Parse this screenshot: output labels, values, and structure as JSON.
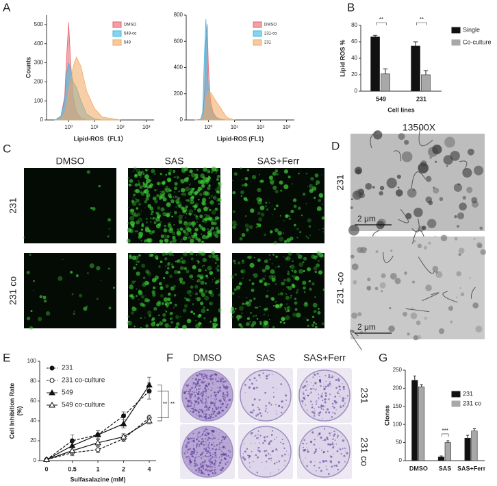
{
  "panel_labels": [
    "A",
    "B",
    "C",
    "D",
    "E",
    "F",
    "G"
  ],
  "chart_data": [
    {
      "type": "area",
      "xscale": "log",
      "ylabel": "Counts",
      "xlabel": "Lipid-ROS（FL1）",
      "legend": "upper right",
      "xlim": [
        0.14,
        2000
      ],
      "xticks": [
        {
          "value": 1,
          "label": "10⁰"
        },
        {
          "value": 10,
          "label": "10¹"
        },
        {
          "value": 100,
          "label": "10²"
        },
        {
          "value": 1000,
          "label": "10³"
        }
      ],
      "ylim": [
        0,
        550
      ],
      "yticks": [
        0,
        100,
        200,
        300,
        400,
        500
      ],
      "x": [
        0.3,
        0.5,
        0.7,
        0.85,
        1,
        1.2,
        1.5,
        2,
        3,
        5,
        10,
        20,
        100
      ],
      "series": [
        {
          "name": "DMSO",
          "color": "#e8606a",
          "values": [
            0,
            20,
            120,
            350,
            510,
            300,
            120,
            40,
            10,
            0,
            0,
            0,
            0
          ]
        },
        {
          "name": "549-co",
          "color": "#3bb8e0",
          "values": [
            0,
            20,
            100,
            250,
            300,
            260,
            200,
            170,
            100,
            30,
            5,
            0,
            0
          ]
        },
        {
          "name": "549",
          "color": "#f2a65e",
          "values": [
            0,
            5,
            30,
            80,
            150,
            200,
            280,
            330,
            280,
            150,
            60,
            15,
            0
          ]
        }
      ]
    },
    {
      "type": "area",
      "xscale": "log",
      "xlabel": "Lipid-ROS (FL1)",
      "legend": "upper right",
      "xlim": [
        0.14,
        2000
      ],
      "xticks": [
        {
          "value": 1,
          "label": "10⁰"
        },
        {
          "value": 10,
          "label": "10¹"
        },
        {
          "value": 100,
          "label": "10²"
        },
        {
          "value": 1000,
          "label": "10³"
        }
      ],
      "ylim": [
        0,
        800
      ],
      "yticks": [
        0,
        200,
        400,
        600,
        800
      ],
      "x": [
        0.3,
        0.5,
        0.6,
        0.7,
        0.8,
        0.9,
        1,
        1.2,
        1.5,
        2,
        3,
        5,
        10
      ],
      "series": [
        {
          "name": "DMSO",
          "color": "#e8606a",
          "values": [
            0,
            0,
            20,
            200,
            600,
            730,
            400,
            150,
            60,
            20,
            5,
            0,
            0
          ]
        },
        {
          "name": "231-co",
          "color": "#3bb8e0",
          "values": [
            0,
            5,
            60,
            500,
            770,
            500,
            200,
            100,
            50,
            20,
            5,
            0,
            0
          ]
        },
        {
          "name": "231",
          "color": "#f2a65e",
          "values": [
            0,
            0,
            10,
            60,
            150,
            200,
            220,
            210,
            180,
            140,
            90,
            20,
            0
          ]
        }
      ]
    },
    {
      "type": "bar",
      "ylabel": "Lipid ROS %",
      "xlabel": "Cell lines",
      "legend": "right",
      "categories": [
        "549",
        "231"
      ],
      "ylim": [
        0,
        80
      ],
      "yticks": [
        0,
        20,
        40,
        60,
        80
      ],
      "series": [
        {
          "name": "Single",
          "color": "#111111",
          "values": [
            66,
            55
          ],
          "errors": [
            2,
            5
          ]
        },
        {
          "name": "Co-culture",
          "color": "#a8a8a8",
          "values": [
            21,
            20
          ],
          "errors": [
            6,
            5
          ]
        }
      ],
      "annotations": [
        "**",
        "**"
      ]
    },
    {
      "type": "line",
      "ylabel": [
        "Cell Inhibition Rate",
        "(%)"
      ],
      "xlabel": "Sulfasalazine (mM)",
      "legend": "upper left",
      "categories": [
        "0",
        "0.5",
        "1",
        "2",
        "4"
      ],
      "ylim": [
        0,
        100
      ],
      "yticks": [
        0,
        20,
        40,
        60,
        80,
        100
      ],
      "series": [
        {
          "name": "231",
          "color": "#111111",
          "marker": "circle",
          "filled": true,
          "dash": true,
          "values": [
            1,
            20,
            26,
            45,
            70
          ],
          "errors": [
            1,
            6,
            4,
            4,
            8
          ]
        },
        {
          "name": "231 co-culture",
          "color": "#111111",
          "marker": "circle",
          "filled": false,
          "dash": true,
          "values": [
            1,
            8,
            11,
            22,
            43
          ],
          "errors": [
            1,
            3,
            3,
            3,
            3
          ]
        },
        {
          "name": "549",
          "color": "#111111",
          "marker": "triangle",
          "filled": true,
          "dash": false,
          "values": [
            1,
            15,
            26,
            37,
            76
          ],
          "errors": [
            1,
            5,
            4,
            4,
            8
          ]
        },
        {
          "name": "549 co-culture",
          "color": "#111111",
          "marker": "triangle",
          "filled": false,
          "dash": false,
          "values": [
            1,
            10,
            18,
            24,
            40
          ],
          "errors": [
            1,
            3,
            3,
            3,
            3
          ]
        }
      ],
      "annotations": [
        "**",
        "**"
      ]
    },
    {
      "type": "bar",
      "ylabel": "Clones",
      "legend": "right",
      "categories": [
        "DMSO",
        "SAS",
        "SAS+Ferr"
      ],
      "ylim": [
        0,
        250
      ],
      "yticks": [
        0,
        50,
        100,
        150,
        200,
        250
      ],
      "series": [
        {
          "name": "231",
          "color": "#111111",
          "values": [
            222,
            10,
            62
          ],
          "errors": [
            12,
            3,
            8
          ]
        },
        {
          "name": "231 co",
          "color": "#a8a8a8",
          "values": [
            204,
            50,
            82
          ],
          "errors": [
            6,
            5,
            6
          ]
        }
      ],
      "annotations": [
        "***"
      ]
    }
  ],
  "panel_c": {
    "columns": [
      "DMSO",
      "SAS",
      "SAS+Ferr"
    ],
    "rows": [
      "231",
      "231 co"
    ]
  },
  "panel_d": {
    "title": "13500X",
    "rows": [
      "231",
      "231 -co"
    ],
    "scale_bars": [
      "2 μm",
      "2 μm"
    ]
  },
  "panel_f": {
    "columns": [
      "DMSO",
      "SAS",
      "SAS+Ferr"
    ],
    "rows": [
      "231",
      "231 co"
    ]
  }
}
